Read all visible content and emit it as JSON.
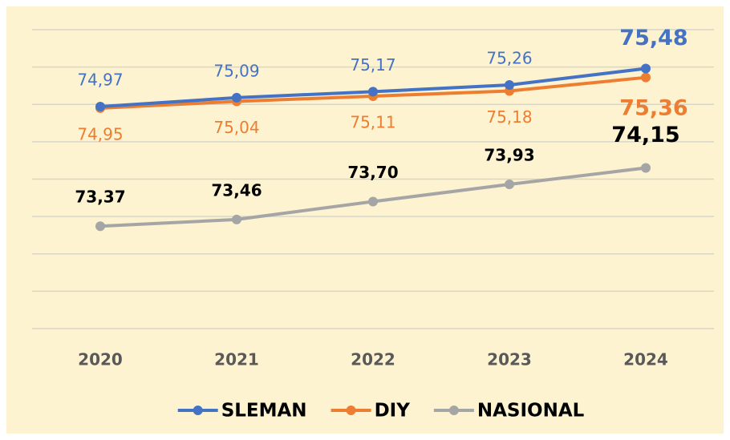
{
  "chart_data": {
    "type": "line",
    "categories": [
      "2020",
      "2021",
      "2022",
      "2023",
      "2024"
    ],
    "series": [
      {
        "name": "SLEMAN",
        "color": "#4472c4",
        "values": [
          74.97,
          75.09,
          75.17,
          75.26,
          75.48
        ],
        "value_labels": [
          "74,97",
          "75,09",
          "75,17",
          "75,26",
          "75,48"
        ]
      },
      {
        "name": "DIY",
        "color": "#ed7d31",
        "values": [
          74.95,
          75.04,
          75.11,
          75.18,
          75.36
        ],
        "value_labels": [
          "74,95",
          "75,04",
          "75,11",
          "75,18",
          "75,36"
        ]
      },
      {
        "name": "NASIONAL",
        "color": "#a5a5a5",
        "values": [
          73.37,
          73.46,
          73.7,
          73.93,
          74.15
        ],
        "value_labels": [
          "73,37",
          "73,46",
          "73,70",
          "73,93",
          "74,15"
        ]
      }
    ],
    "ylim": [
      72,
      76
    ],
    "yticks": [
      72,
      72.5,
      73,
      73.5,
      74,
      74.5,
      75,
      75.5,
      76
    ],
    "grid": true,
    "legend": "bottom"
  }
}
